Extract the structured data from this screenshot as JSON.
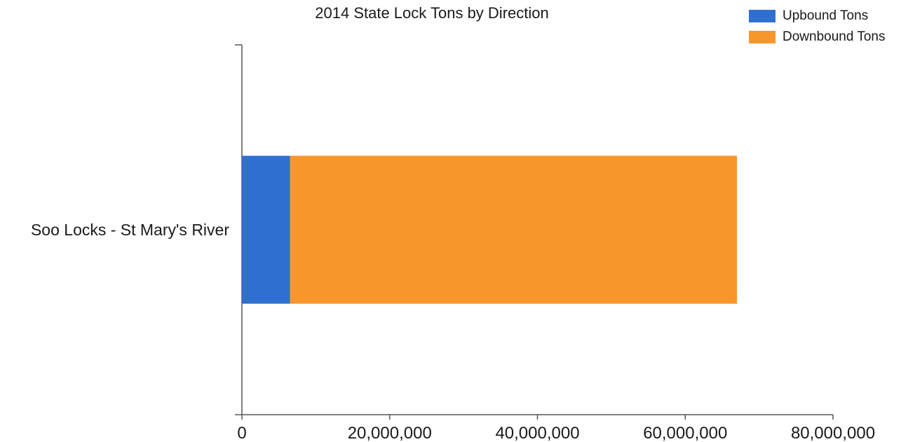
{
  "chart_data": {
    "type": "bar",
    "orientation": "horizontal",
    "stacked": true,
    "title": "2014 State Lock Tons by Direction",
    "xlabel": "",
    "ylabel": "",
    "categories": [
      "Soo Locks - St Mary's River"
    ],
    "series": [
      {
        "name": "Upbound Tons",
        "values": [
          6500000
        ],
        "color": "#2f6fd0"
      },
      {
        "name": "Downbound Tons",
        "values": [
          60500000
        ],
        "color": "#f7962a"
      }
    ],
    "xlim": [
      0,
      80000000
    ],
    "xticks": [
      0,
      20000000,
      40000000,
      60000000,
      80000000
    ],
    "xtick_labels": [
      "0",
      "20,000,000",
      "40,000,000",
      "60,000,000",
      "80,000,000"
    ],
    "grid": false,
    "legend_position": "top-right"
  }
}
